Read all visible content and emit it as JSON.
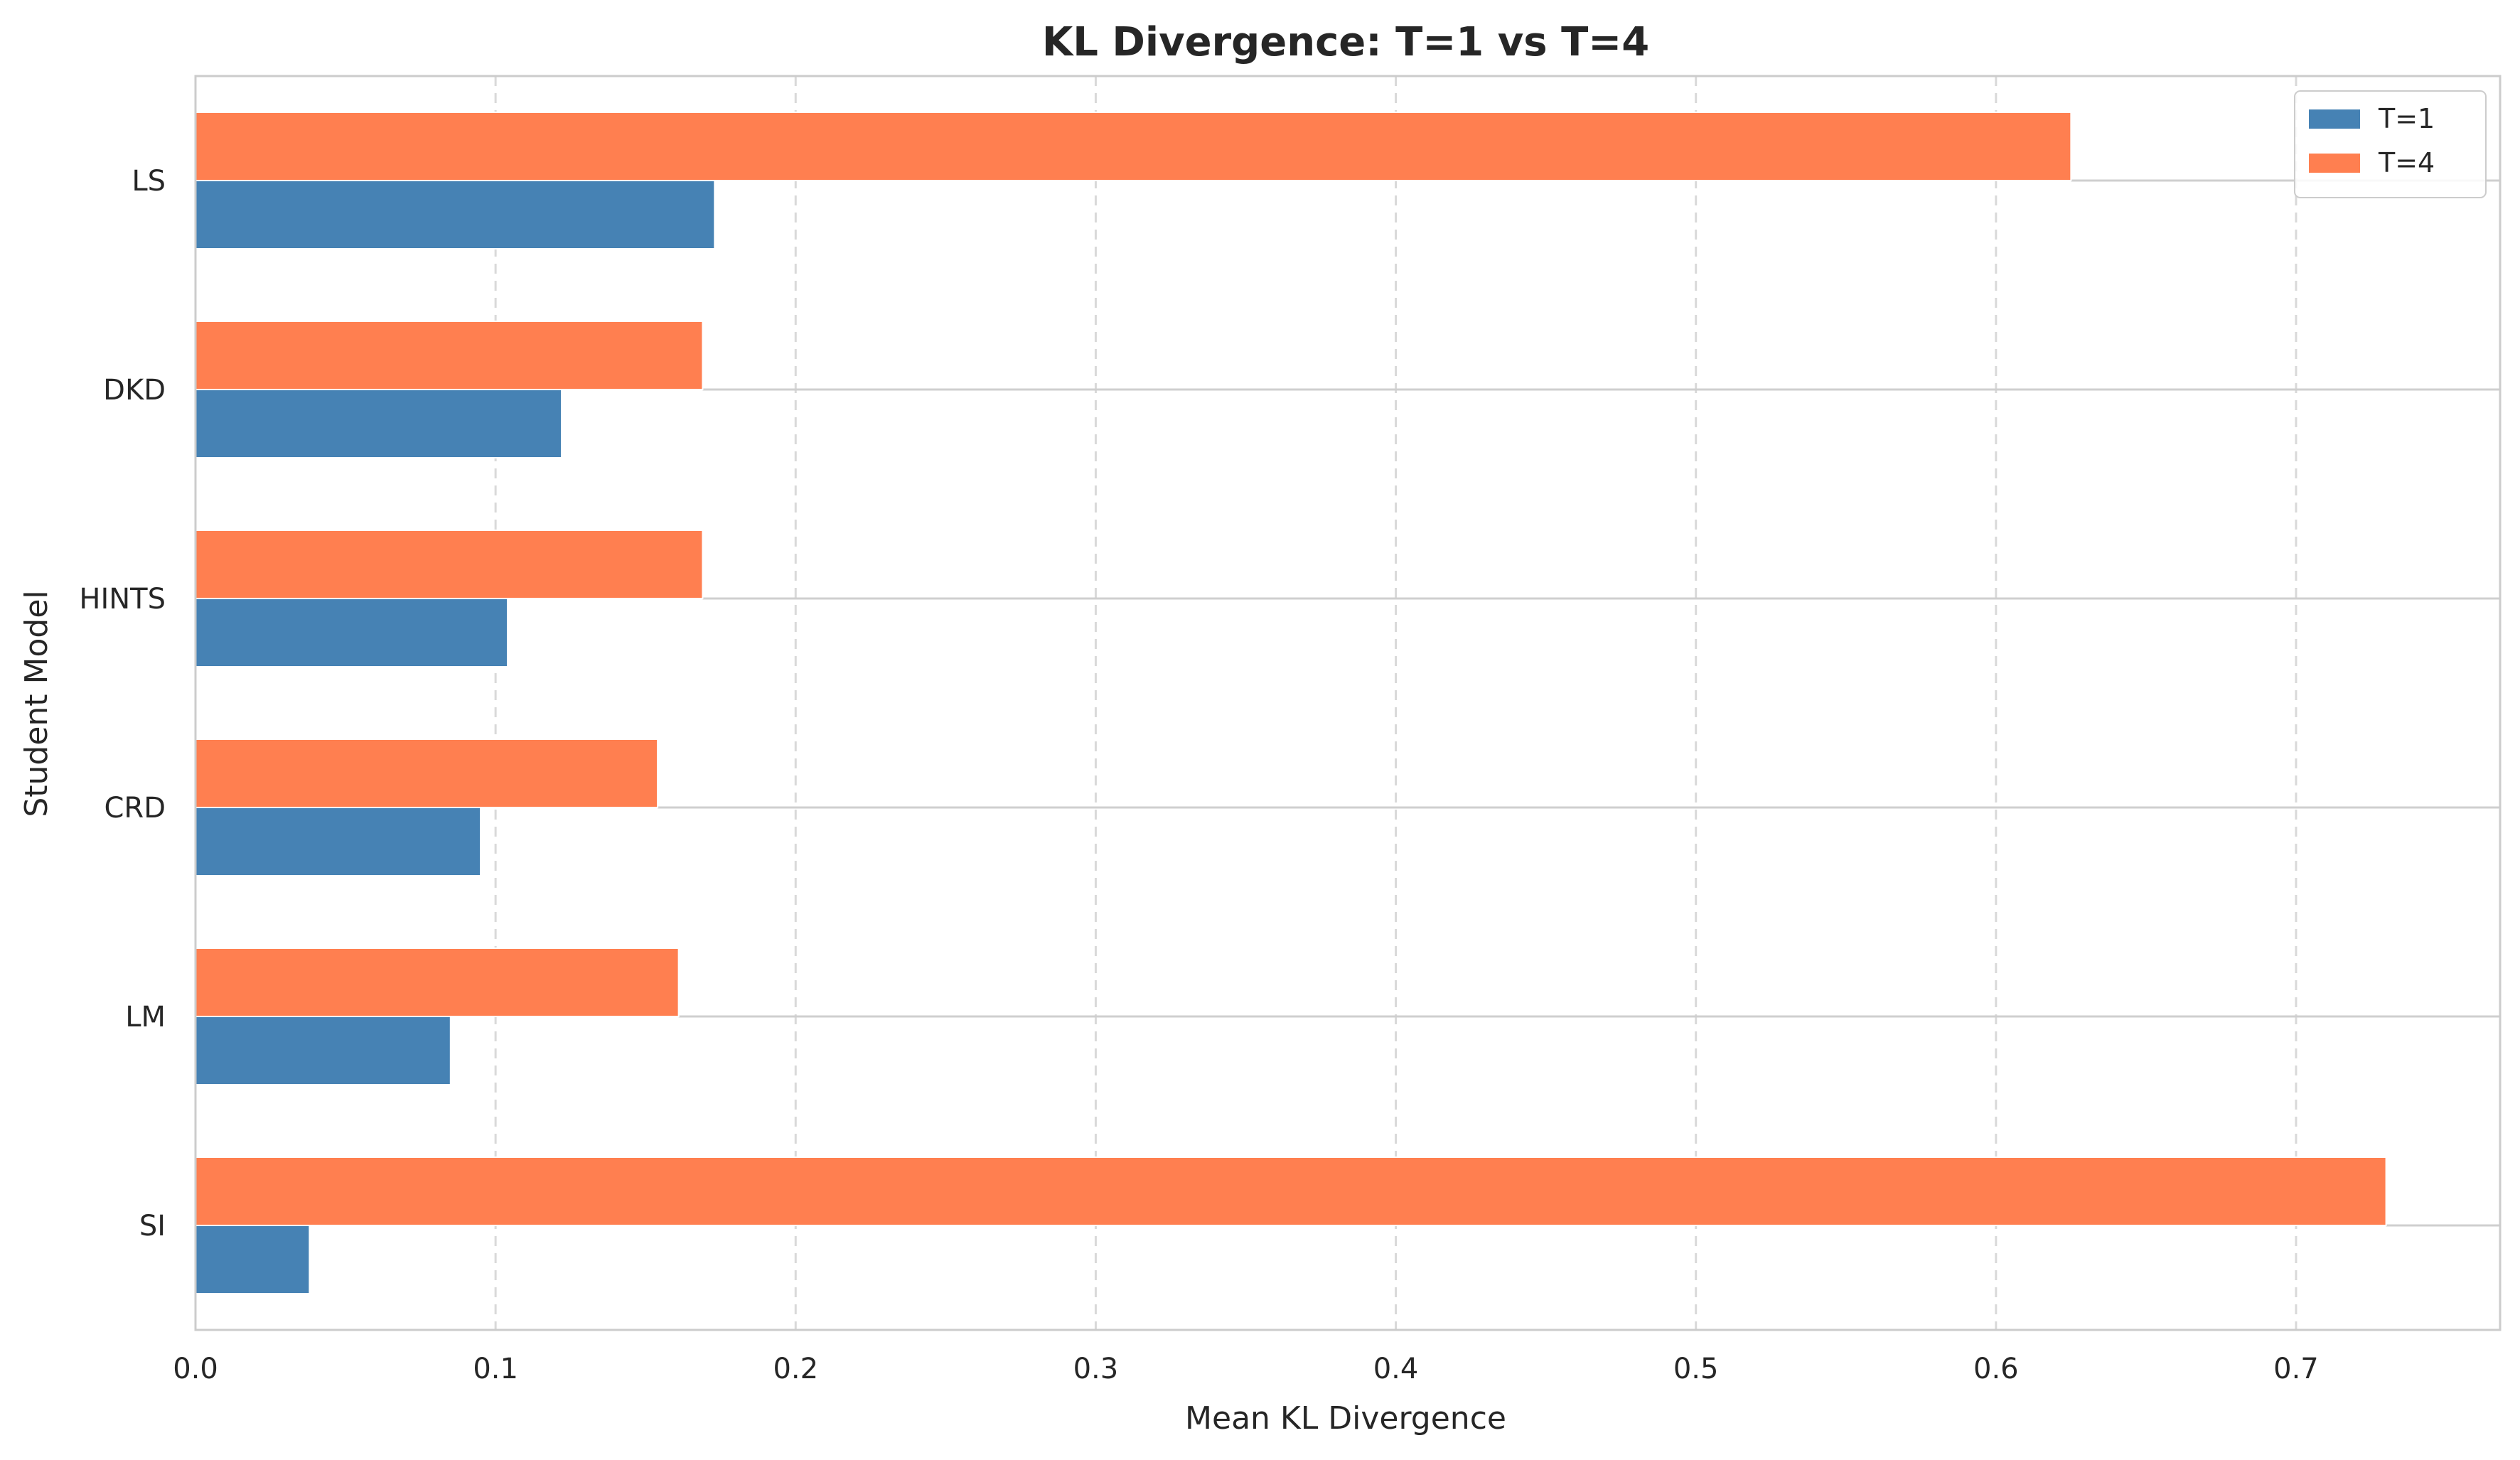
{
  "chart_data": {
    "type": "bar",
    "orientation": "horizontal",
    "title": "KL Divergence: T=1 vs T=4",
    "xlabel": "Mean KL Divergence",
    "ylabel": "Student Model",
    "categories": [
      "LS",
      "DKD",
      "HINTS",
      "CRD",
      "LM",
      "SI"
    ],
    "series": [
      {
        "name": "T=1",
        "color": "#4682B4",
        "values": [
          0.173,
          0.122,
          0.104,
          0.095,
          0.085,
          0.038
        ]
      },
      {
        "name": "T=4",
        "color": "#FF7F50",
        "values": [
          0.625,
          0.169,
          0.169,
          0.154,
          0.161,
          0.73
        ]
      }
    ],
    "xlim": [
      0,
      0.768
    ],
    "xticks": [
      "0.0",
      "0.1",
      "0.2",
      "0.3",
      "0.4",
      "0.5",
      "0.6",
      "0.7"
    ],
    "xtick_values": [
      0,
      0.1,
      0.2,
      0.3,
      0.4,
      0.5,
      0.6,
      0.7
    ],
    "grid": "x dashed",
    "legend": "top-right"
  }
}
